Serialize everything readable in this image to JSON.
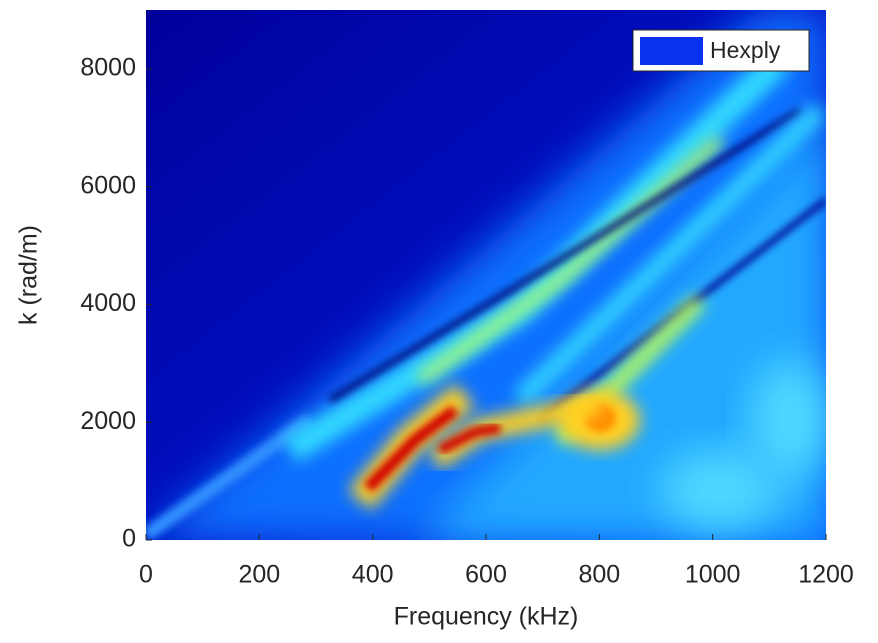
{
  "chart_data": {
    "type": "heatmap",
    "xlabel": "Frequency (kHz)",
    "ylabel": "k (rad/m)",
    "xlim": [
      0,
      1200
    ],
    "xticks": [
      0,
      200,
      400,
      600,
      800,
      1000,
      1200
    ],
    "ylim": [
      0,
      9000
    ],
    "yticks": [
      0,
      2000,
      4000,
      6000,
      8000
    ],
    "legend": {
      "label": "Hexply",
      "color": "#0a32f0",
      "position": "upper right"
    }
  }
}
